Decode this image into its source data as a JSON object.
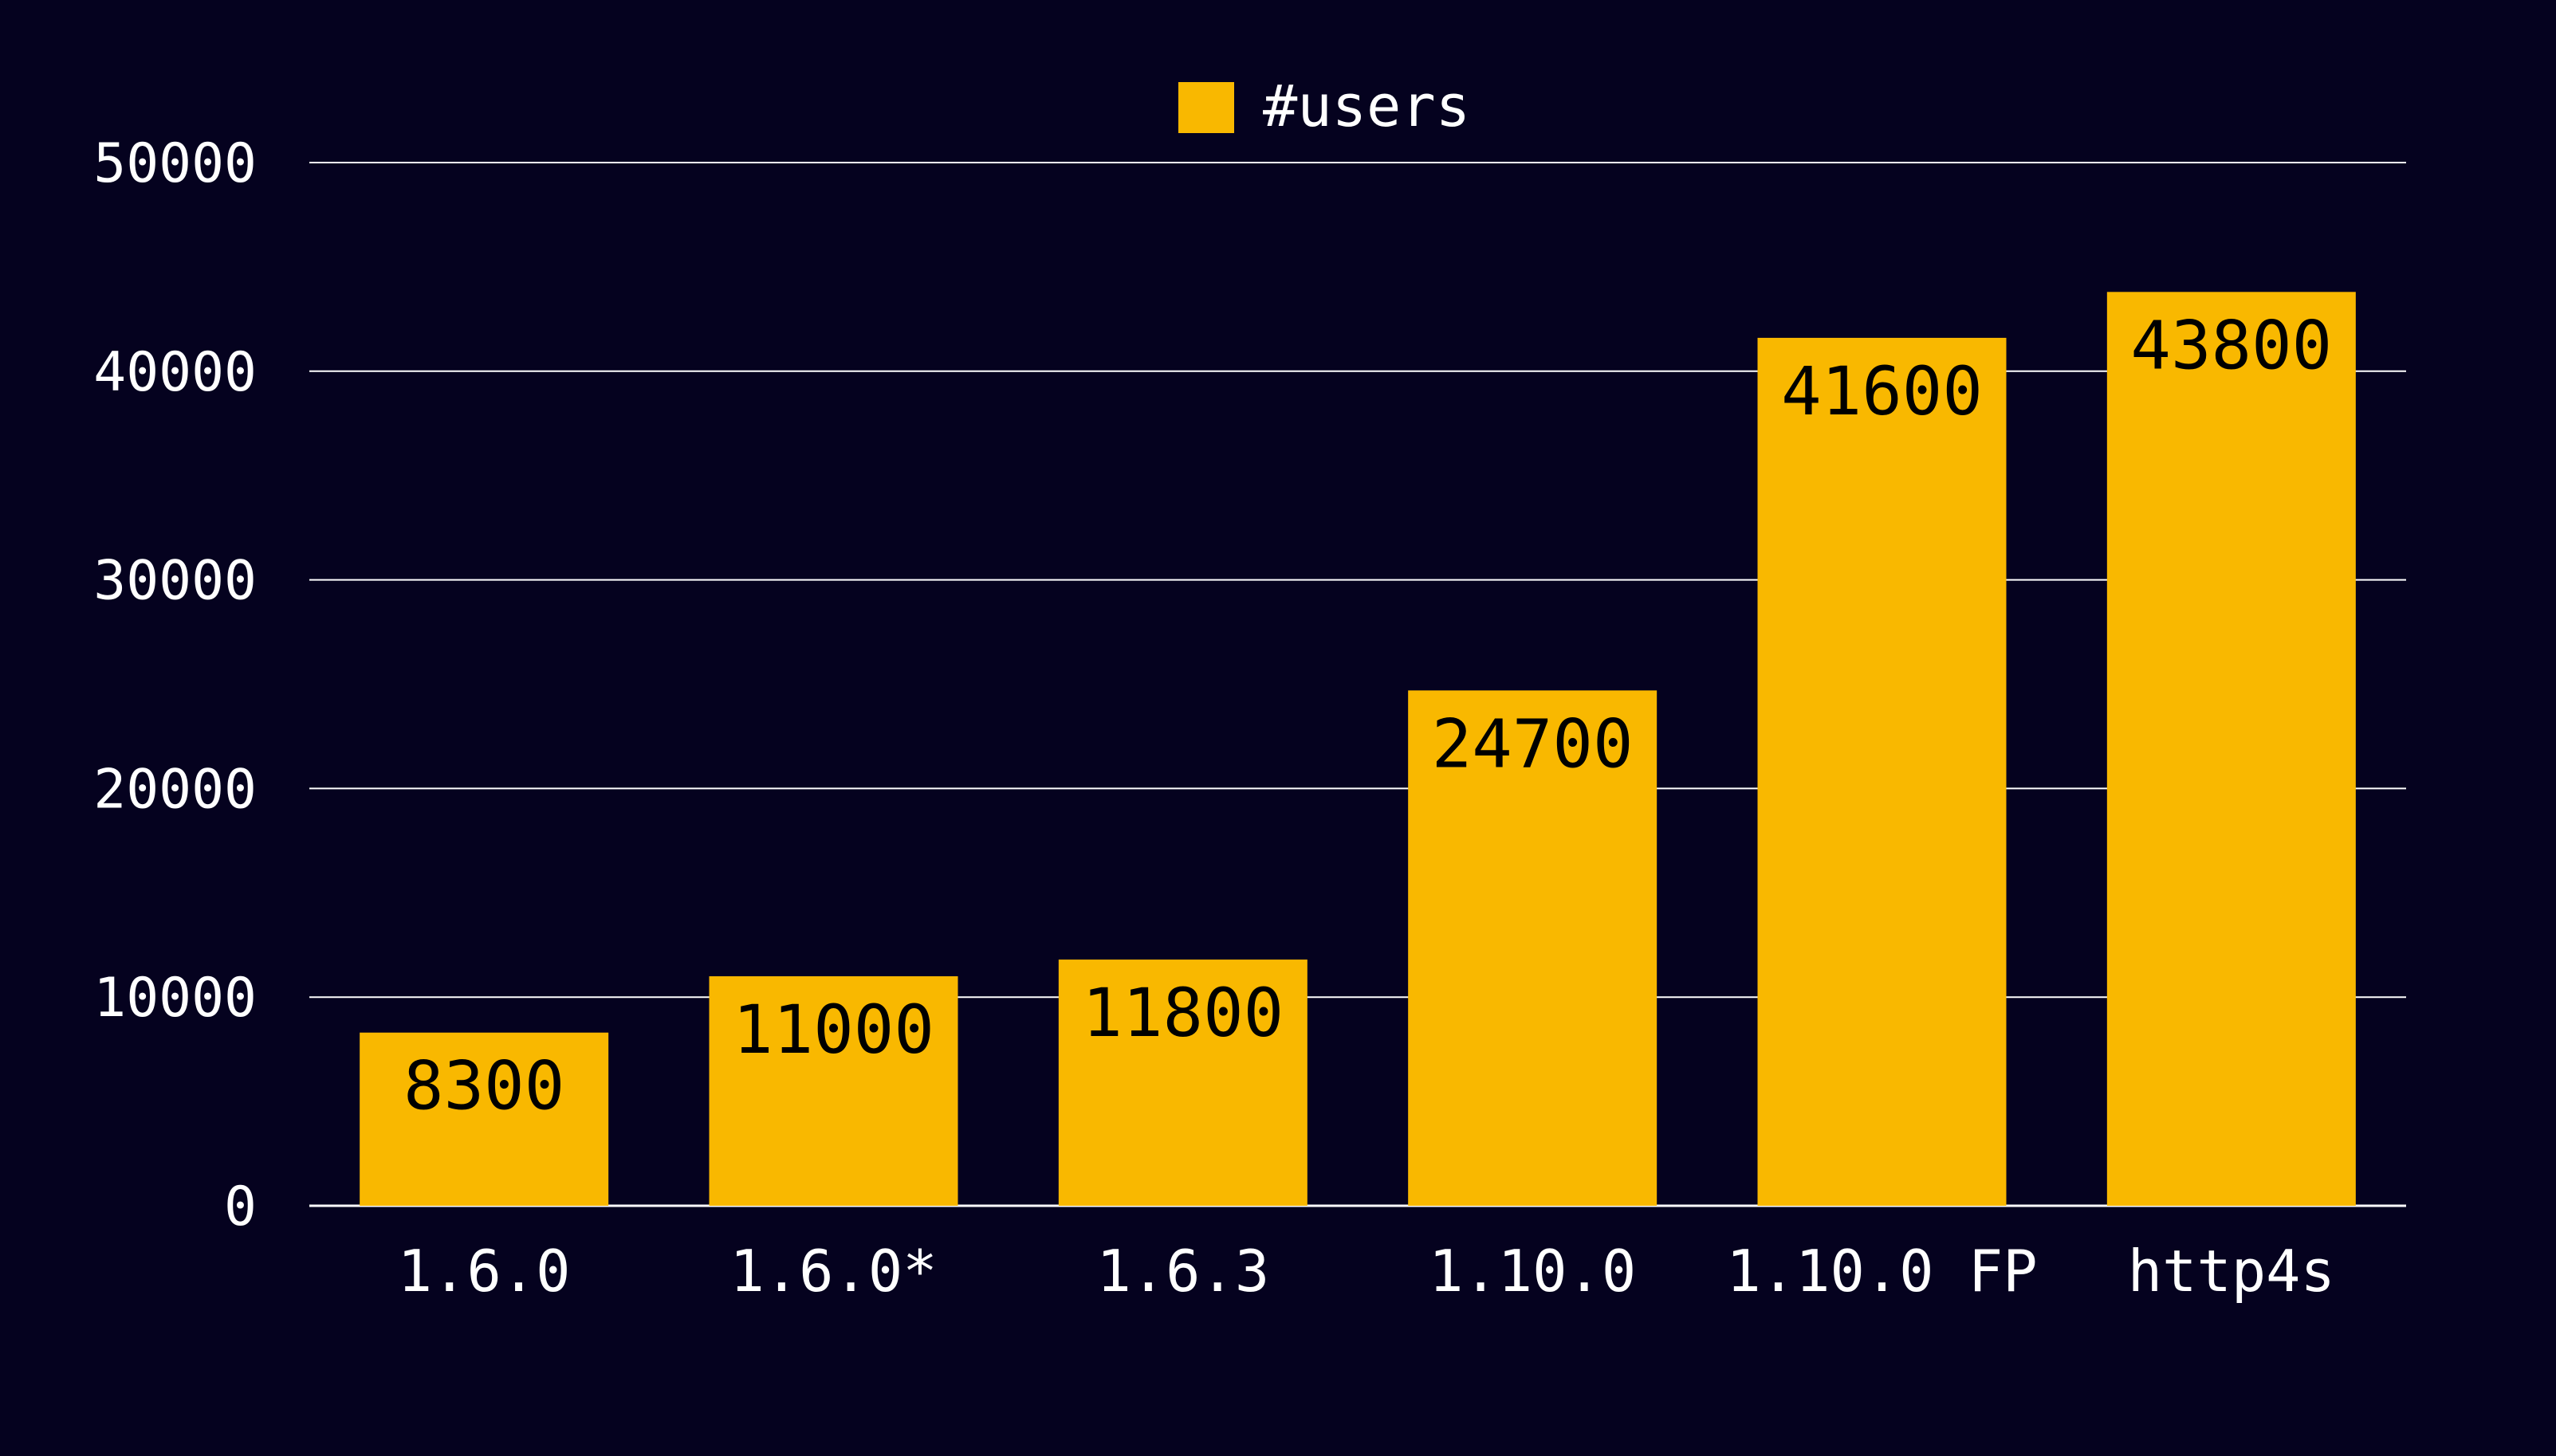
{
  "chart_data": {
    "type": "bar",
    "categories": [
      "1.6.0",
      "1.6.0*",
      "1.6.3",
      "1.10.0",
      "1.10.0 FP",
      "http4s"
    ],
    "series": [
      {
        "name": "#users",
        "values": [
          8300,
          11000,
          11800,
          24700,
          41600,
          43800
        ]
      }
    ],
    "data_labels": [
      "8300",
      "11000",
      "11800",
      "24700",
      "41600",
      "43800"
    ],
    "y_ticks": [
      0,
      10000,
      20000,
      30000,
      40000,
      50000
    ],
    "y_tick_labels": [
      "0",
      "10000",
      "20000",
      "30000",
      "40000",
      "50000"
    ],
    "ylim": [
      0,
      50000
    ],
    "title": "",
    "xlabel": "",
    "ylabel": "",
    "grid": true,
    "legend_position": "top-center"
  },
  "colors": {
    "background": "#05021f",
    "bar": "#f9b800",
    "text": "#ffffff",
    "data_label": "#000000",
    "grid": "#ffffff"
  }
}
